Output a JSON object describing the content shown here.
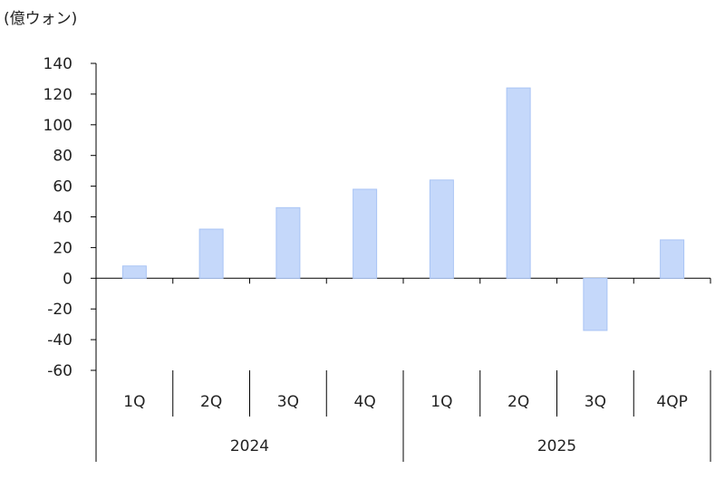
{
  "chart_data": {
    "type": "bar",
    "unit_label": "(億ウォン)",
    "categories": [
      "1Q",
      "2Q",
      "3Q",
      "4Q",
      "1Q",
      "2Q",
      "3Q",
      "4QP"
    ],
    "groups": [
      {
        "label": "2024",
        "count": 4
      },
      {
        "label": "2025",
        "count": 4
      }
    ],
    "values": [
      8,
      32,
      46,
      58,
      64,
      124,
      -34,
      25
    ],
    "ylim": [
      -60,
      140
    ],
    "yticks": [
      140,
      120,
      100,
      80,
      60,
      40,
      20,
      0,
      -20,
      -40,
      -60
    ],
    "bar_color": "#c5d8fa",
    "bar_edge_color": "#a9c4f5",
    "grid": false,
    "legend": "none"
  }
}
